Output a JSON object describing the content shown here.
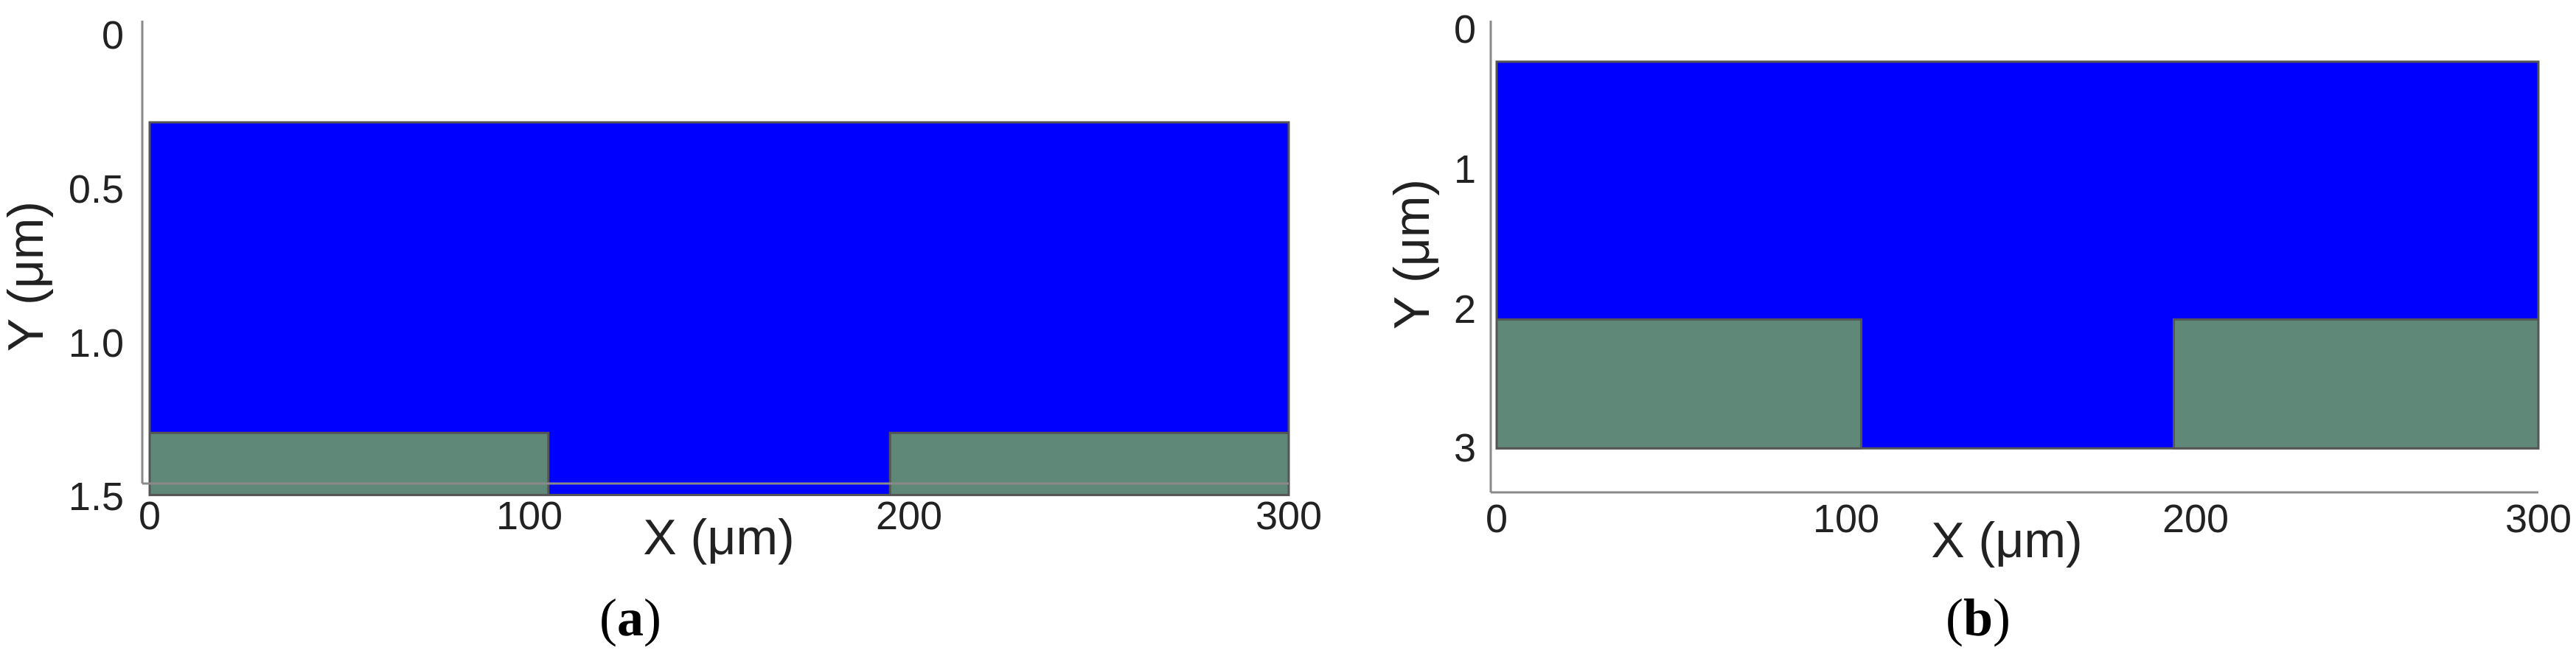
{
  "colors": {
    "oxide": "#0000ff",
    "electrode": "#5f8878",
    "axis": "#8a8a8a",
    "outline": "#555555"
  },
  "panels": [
    {
      "id": "a",
      "label_open": "(",
      "label_letter": "a",
      "label_close": ")",
      "xlabel": "X (μm)",
      "ylabel": "Y (μm)",
      "x_ticks": [
        "0",
        "100",
        "200",
        "300"
      ],
      "y_ticks": [
        "0",
        "0.5",
        "1.0",
        "1.5"
      ],
      "xlim": [
        0,
        300
      ],
      "ylim": [
        0,
        1.5
      ],
      "y_inverted": true,
      "oxide_region": {
        "x": [
          0,
          300
        ],
        "y": [
          0.28,
          1.48
        ]
      },
      "electrodes": [
        {
          "x": [
            0,
            105
          ],
          "y": [
            1.28,
            1.48
          ]
        },
        {
          "x": [
            195,
            300
          ],
          "y": [
            1.28,
            1.48
          ]
        }
      ]
    },
    {
      "id": "b",
      "label_open": "(",
      "label_letter": "b",
      "label_close": ")",
      "xlabel": "X (μm)",
      "ylabel": "Y (μm)",
      "x_ticks": [
        "0",
        "100",
        "200",
        "300"
      ],
      "y_ticks": [
        "0",
        "1",
        "2",
        "3"
      ],
      "xlim": [
        0,
        300
      ],
      "ylim": [
        0,
        3.3
      ],
      "y_inverted": true,
      "oxide_region": {
        "x": [
          0,
          300
        ],
        "y": [
          0.25,
          3.25
        ]
      },
      "electrodes": [
        {
          "x": [
            0,
            105
          ],
          "y": [
            2.25,
            3.25
          ]
        },
        {
          "x": [
            195,
            300
          ],
          "y": [
            2.25,
            3.25
          ]
        }
      ]
    }
  ]
}
